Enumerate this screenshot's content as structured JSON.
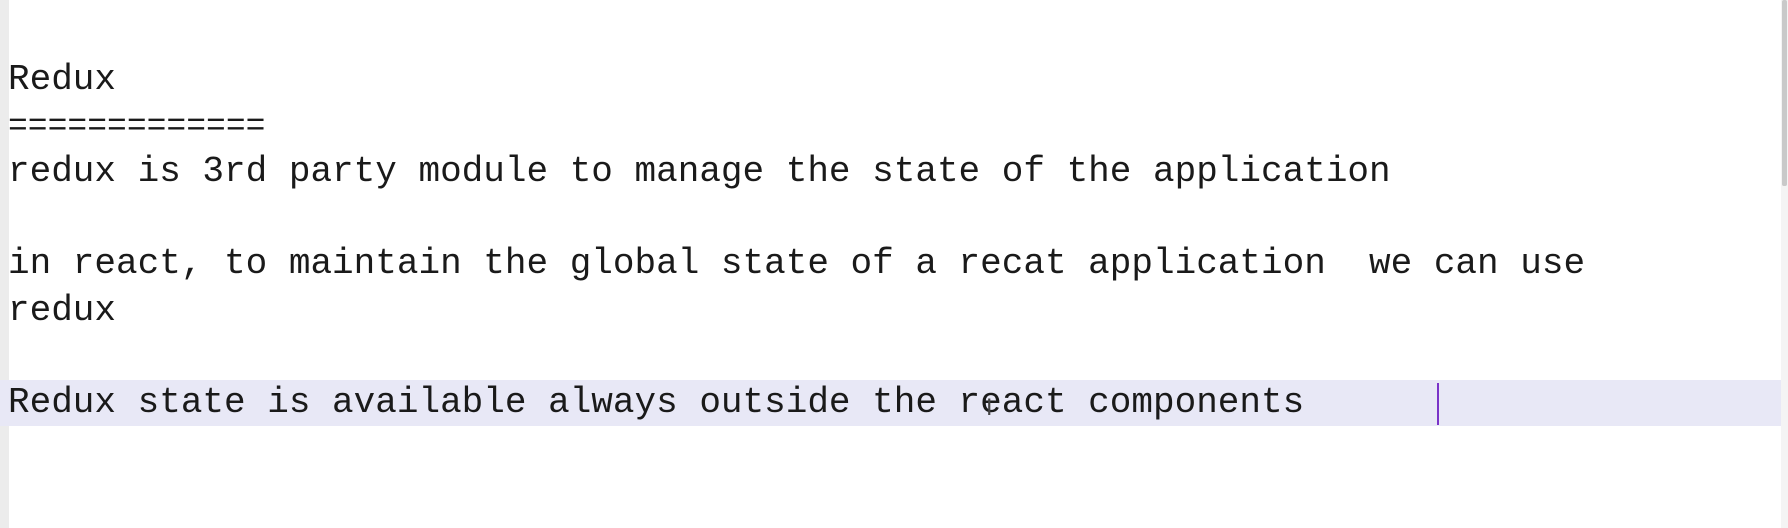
{
  "editor": {
    "lines": [
      "Redux",
      "=============",
      "redux is 3rd party module to manage the state of the application",
      "",
      "in react, to maintain the global state of a recat application  we can use",
      "redux",
      "",
      "Redux state is available always outside the react components"
    ],
    "current_line_index": 7,
    "highlight_color": "#e8e8f6",
    "caret_color": "#7a33c8"
  }
}
